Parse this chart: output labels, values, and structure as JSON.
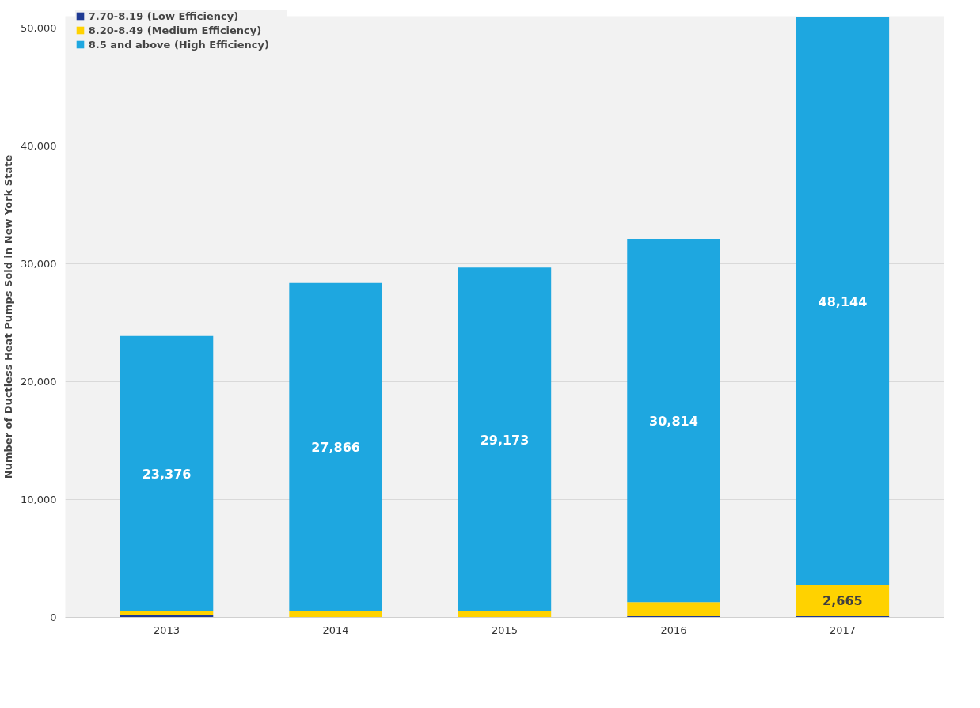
{
  "chart_data": {
    "type": "bar",
    "stacked": true,
    "ylabel": "Number of Ductless Heat Pumps Sold in New York State",
    "categories": [
      "2013",
      "2014",
      "2015",
      "2016",
      "2017"
    ],
    "series": [
      {
        "name": "7.70-8.19 (Low Efficiency)",
        "color": "#1f3a93",
        "values": [
          200,
          0,
          0,
          100,
          100
        ]
      },
      {
        "name": "8.20-8.49 (Medium Efficiency)",
        "color": "#ffd200",
        "values": [
          300,
          500,
          500,
          1200,
          2665
        ],
        "value_labels": [
          null,
          null,
          null,
          null,
          "2,665"
        ]
      },
      {
        "name": "8.5 and above (High Efficiency)",
        "color": "#1ea7e0",
        "values": [
          23376,
          27866,
          29173,
          30814,
          48144
        ],
        "value_labels": [
          "23,376",
          "27,866",
          "29,173",
          "30,814",
          "48,144"
        ]
      }
    ],
    "ylim": [
      0,
      51000
    ],
    "yticks": [
      {
        "value": 0,
        "label": "0"
      },
      {
        "value": 10000,
        "label": "10,000"
      },
      {
        "value": 20000,
        "label": "20,000"
      },
      {
        "value": 30000,
        "label": "30,000"
      },
      {
        "value": 40000,
        "label": "40,000"
      },
      {
        "value": 50000,
        "label": "50,000"
      }
    ],
    "grid": "y",
    "legend": "top left"
  }
}
